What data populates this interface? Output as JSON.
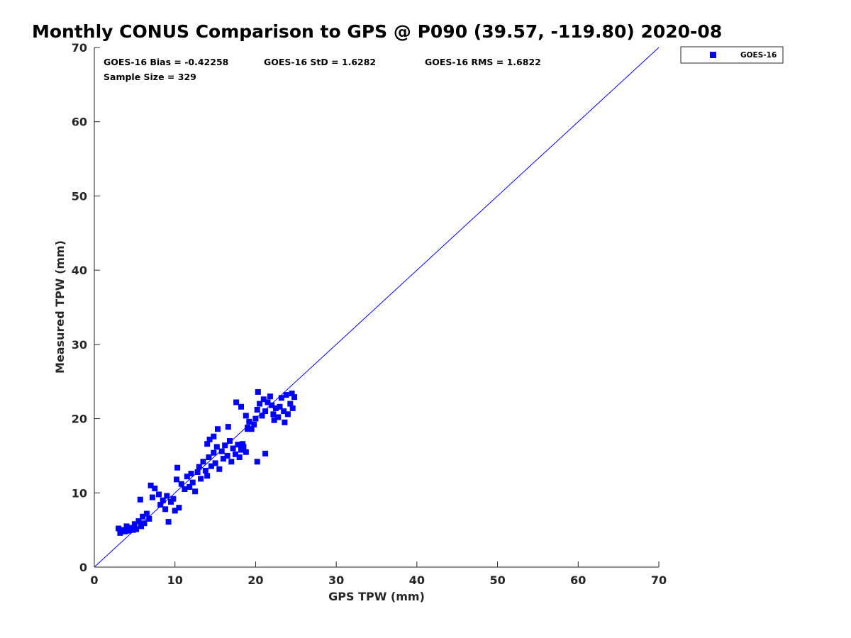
{
  "chart_data": {
    "type": "scatter",
    "title": "Monthly CONUS Comparison to GPS @ P090 (39.57, -119.80) 2020-08",
    "xlabel": "GPS TPW (mm)",
    "ylabel": "Measured TPW (mm)",
    "xlim": [
      0,
      70
    ],
    "ylim": [
      0,
      70
    ],
    "xticks": [
      "0",
      "10",
      "20",
      "30",
      "40",
      "50",
      "60",
      "70"
    ],
    "yticks": [
      "0",
      "10",
      "20",
      "30",
      "40",
      "50",
      "60",
      "70"
    ],
    "grid": false,
    "legend_position": "outside-top-right",
    "reference_line": {
      "from": [
        0,
        0
      ],
      "to": [
        70,
        70
      ],
      "color": "#0000ff"
    },
    "stats": {
      "bias": "GOES-16 Bias = -0.42258",
      "std": "GOES-16 StD = 1.6282",
      "rms": "GOES-16 RMS = 1.6822",
      "sample_size": "Sample Size = 329"
    },
    "series": [
      {
        "name": "GOES-16",
        "color": "#0000ff",
        "marker": "square",
        "points": [
          [
            3.0,
            5.2
          ],
          [
            3.2,
            4.6
          ],
          [
            3.5,
            5.0
          ],
          [
            3.8,
            4.8
          ],
          [
            4.0,
            5.5
          ],
          [
            4.2,
            4.9
          ],
          [
            4.5,
            5.3
          ],
          [
            4.8,
            5.0
          ],
          [
            5.0,
            5.8
          ],
          [
            5.2,
            5.1
          ],
          [
            5.5,
            6.2
          ],
          [
            5.8,
            5.5
          ],
          [
            6.0,
            6.8
          ],
          [
            6.2,
            5.9
          ],
          [
            6.5,
            7.2
          ],
          [
            6.8,
            6.5
          ],
          [
            5.7,
            9.1
          ],
          [
            7.0,
            11.0
          ],
          [
            7.5,
            10.6
          ],
          [
            7.2,
            9.4
          ],
          [
            8.0,
            9.8
          ],
          [
            8.5,
            9.0
          ],
          [
            8.2,
            8.4
          ],
          [
            9.0,
            9.6
          ],
          [
            9.5,
            8.8
          ],
          [
            9.8,
            9.2
          ],
          [
            8.8,
            7.8
          ],
          [
            9.2,
            6.1
          ],
          [
            10.0,
            7.6
          ],
          [
            10.5,
            8.0
          ],
          [
            10.2,
            11.8
          ],
          [
            10.8,
            11.2
          ],
          [
            10.3,
            13.4
          ],
          [
            11.2,
            10.5
          ],
          [
            11.5,
            12.2
          ],
          [
            11.8,
            10.8
          ],
          [
            12.0,
            12.6
          ],
          [
            12.2,
            11.4
          ],
          [
            12.5,
            10.2
          ],
          [
            12.8,
            12.8
          ],
          [
            13.0,
            13.5
          ],
          [
            13.2,
            11.9
          ],
          [
            13.5,
            14.2
          ],
          [
            13.8,
            13.0
          ],
          [
            14.0,
            12.3
          ],
          [
            14.2,
            14.8
          ],
          [
            14.5,
            13.6
          ],
          [
            14.8,
            15.4
          ],
          [
            15.0,
            14.0
          ],
          [
            15.2,
            16.2
          ],
          [
            15.5,
            13.2
          ],
          [
            15.8,
            15.6
          ],
          [
            16.0,
            14.6
          ],
          [
            16.2,
            16.4
          ],
          [
            16.5,
            15.0
          ],
          [
            16.8,
            17.0
          ],
          [
            17.0,
            14.2
          ],
          [
            17.2,
            16.0
          ],
          [
            17.5,
            15.2
          ],
          [
            17.8,
            16.5
          ],
          [
            18.0,
            14.8
          ],
          [
            18.2,
            15.8
          ],
          [
            18.5,
            16.2
          ],
          [
            18.8,
            15.5
          ],
          [
            14.3,
            17.2
          ],
          [
            14.8,
            17.6
          ],
          [
            15.3,
            18.6
          ],
          [
            14.0,
            16.6
          ],
          [
            16.6,
            18.9
          ],
          [
            17.6,
            22.2
          ],
          [
            18.2,
            21.6
          ],
          [
            18.8,
            20.4
          ],
          [
            19.0,
            18.8
          ],
          [
            19.2,
            19.6
          ],
          [
            19.5,
            18.6
          ],
          [
            19.8,
            19.2
          ],
          [
            20.0,
            20.0
          ],
          [
            20.2,
            21.2
          ],
          [
            20.3,
            23.6
          ],
          [
            20.5,
            22.0
          ],
          [
            20.8,
            20.4
          ],
          [
            21.0,
            22.6
          ],
          [
            21.2,
            21.0
          ],
          [
            21.5,
            22.2
          ],
          [
            21.8,
            23.0
          ],
          [
            22.0,
            21.8
          ],
          [
            22.2,
            20.6
          ],
          [
            22.5,
            21.4
          ],
          [
            22.8,
            20.2
          ],
          [
            23.0,
            21.6
          ],
          [
            23.2,
            22.8
          ],
          [
            23.5,
            21.0
          ],
          [
            23.8,
            23.2
          ],
          [
            24.0,
            20.6
          ],
          [
            24.3,
            22.0
          ],
          [
            24.6,
            21.4
          ],
          [
            24.8,
            22.9
          ],
          [
            24.5,
            23.4
          ],
          [
            23.6,
            19.5
          ],
          [
            22.3,
            19.8
          ],
          [
            21.2,
            15.3
          ],
          [
            20.2,
            14.2
          ],
          [
            19.0,
            18.6
          ],
          [
            18.4,
            16.6
          ]
        ]
      }
    ]
  }
}
